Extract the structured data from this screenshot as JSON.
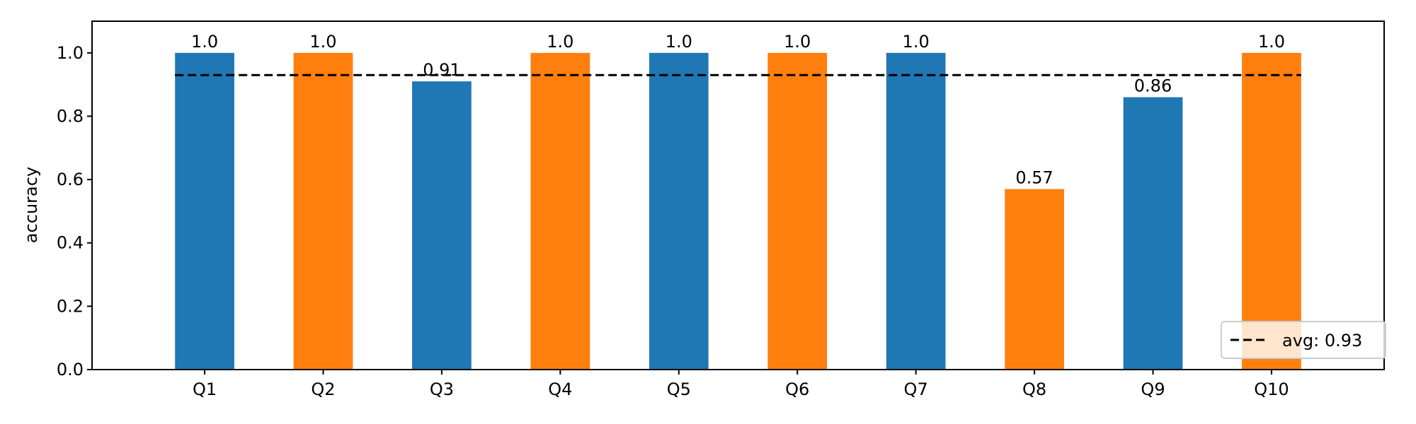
{
  "chart_data": {
    "type": "bar",
    "title": "",
    "xlabel": "",
    "ylabel": "accuracy",
    "ylim": [
      0,
      1.1
    ],
    "yticks": [
      0.0,
      0.2,
      0.4,
      0.6,
      0.8,
      1.0
    ],
    "ytick_labels": [
      "0.0",
      "0.2",
      "0.4",
      "0.6",
      "0.8",
      "1.0"
    ],
    "grid": false,
    "categories": [
      "Q1",
      "Q2",
      "Q3",
      "Q4",
      "Q5",
      "Q6",
      "Q7",
      "Q8",
      "Q9",
      "Q10"
    ],
    "values": [
      1.0,
      1.0,
      0.91,
      1.0,
      1.0,
      1.0,
      1.0,
      0.57,
      0.86,
      1.0
    ],
    "value_labels": [
      "1.0",
      "1.0",
      "0.91",
      "1.0",
      "1.0",
      "1.0",
      "1.0",
      "0.57",
      "0.86",
      "1.0"
    ],
    "bar_colors": [
      "#1f77b4",
      "#ff7f0e",
      "#1f77b4",
      "#ff7f0e",
      "#1f77b4",
      "#ff7f0e",
      "#1f77b4",
      "#ff7f0e",
      "#1f77b4",
      "#ff7f0e"
    ],
    "average": {
      "value": 0.93,
      "label": "avg: 0.93",
      "color": "#000000",
      "style": "dashed"
    },
    "legend": {
      "placement": "bottom-right",
      "entries": [
        "avg: 0.93"
      ]
    }
  }
}
